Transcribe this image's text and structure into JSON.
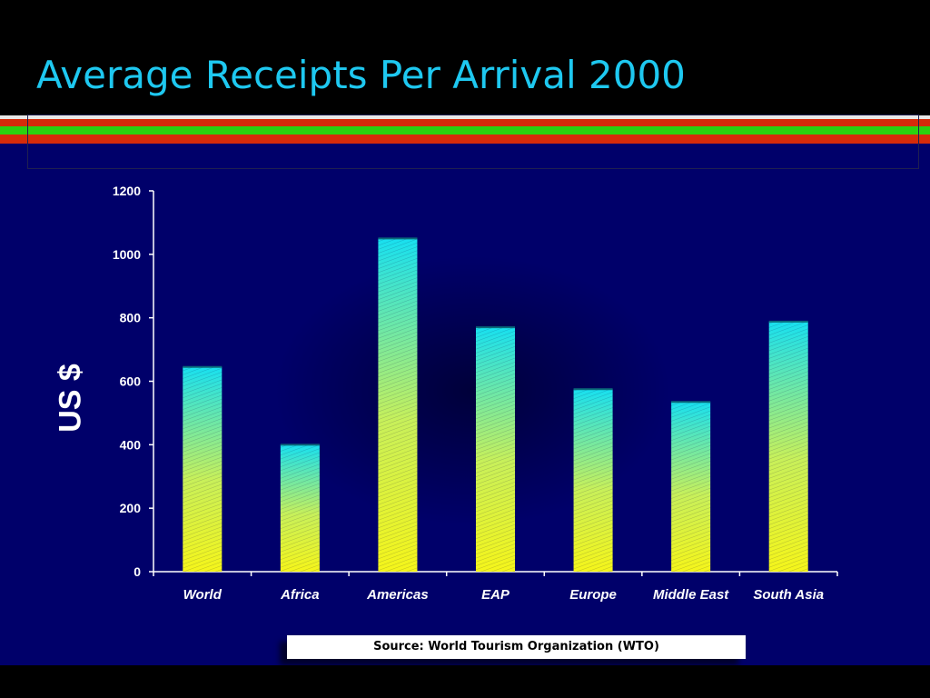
{
  "slide": {
    "title": "Average Receipts Per Arrival 2000",
    "source": "Source: World Tourism Organization (WTO)"
  },
  "colors": {
    "title": "#1ec8f0",
    "panel": "#00006a",
    "stripe_red": "#d62b0a",
    "stripe_green": "#2bd10f",
    "bar_top": "#18e0f0",
    "bar_bottom": "#f5f51a"
  },
  "chart_data": {
    "type": "bar",
    "categories": [
      "World",
      "Africa",
      "Americas",
      "EAP",
      "Europe",
      "Middle East",
      "South Asia"
    ],
    "values": [
      645,
      400,
      1050,
      770,
      575,
      535,
      788
    ],
    "title": "",
    "xlabel": "",
    "ylabel": "US $",
    "ylim": [
      0,
      1200
    ],
    "yticks": [
      0,
      200,
      400,
      600,
      800,
      1000,
      1200
    ],
    "grid": false,
    "legend": "none"
  }
}
